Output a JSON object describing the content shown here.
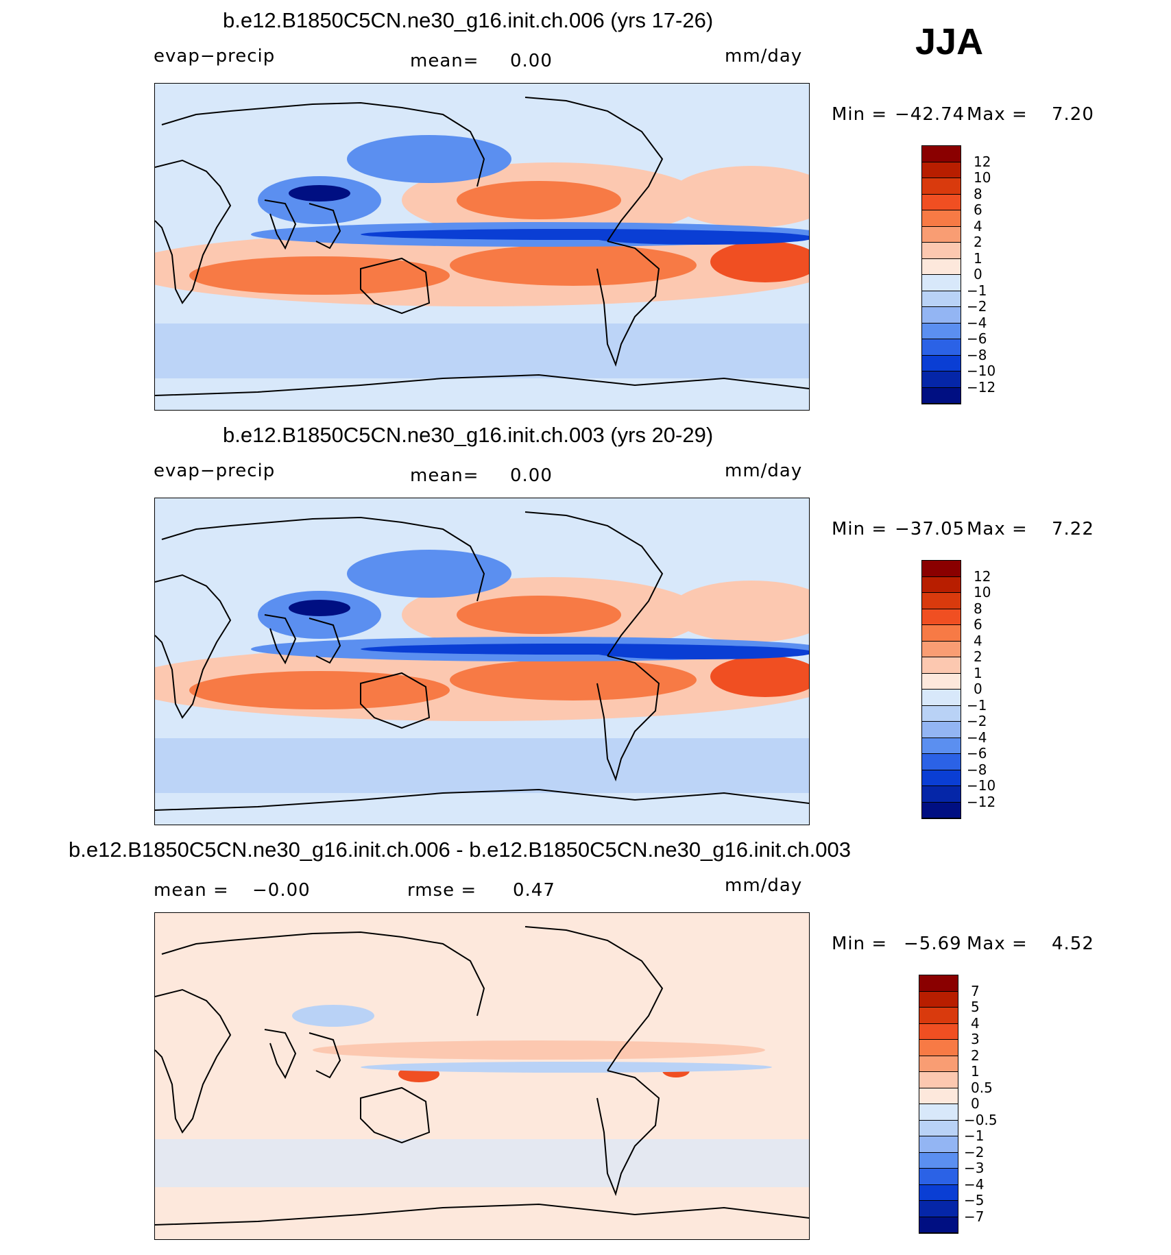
{
  "season": "JJA",
  "panels": [
    {
      "title": "b.e12.B1850C5CN.ne30_g16.init.ch.006 (yrs 17-26)",
      "left_label": "evap−precip",
      "center_label": "mean=",
      "center_value": "0.00",
      "units": "mm/day",
      "min_label": "Min  =",
      "min_value": "−42.74",
      "max_label": "Max  =",
      "max_value": "7.20",
      "colorbar_labels": [
        "12",
        "10",
        "8",
        "6",
        "4",
        "2",
        "1",
        "0",
        "−1",
        "−2",
        "−4",
        "−6",
        "−8",
        "−10",
        "−12"
      ]
    },
    {
      "title": "b.e12.B1850C5CN.ne30_g16.init.ch.003 (yrs 20-29)",
      "left_label": "evap−precip",
      "center_label": "mean=",
      "center_value": "0.00",
      "units": "mm/day",
      "min_label": "Min  =",
      "min_value": "−37.05",
      "max_label": "Max  =",
      "max_value": "7.22",
      "colorbar_labels": [
        "12",
        "10",
        "8",
        "6",
        "4",
        "2",
        "1",
        "0",
        "−1",
        "−2",
        "−4",
        "−6",
        "−8",
        "−10",
        "−12"
      ]
    },
    {
      "title": "b.e12.B1850C5CN.ne30_g16.init.ch.006 - b.e12.B1850C5CN.ne30_g16.init.ch.003",
      "left_label": "mean =",
      "left_value": "−0.00",
      "center_label": "rmse =",
      "center_value": "0.47",
      "units": "mm/day",
      "min_label": "Min  =",
      "min_value": "−5.69",
      "max_label": "Max  =",
      "max_value": "4.52",
      "colorbar_labels": [
        "7",
        "5",
        "4",
        "3",
        "2",
        "1",
        "0.5",
        "0",
        "−0.5",
        "−1",
        "−2",
        "−3",
        "−4",
        "−5",
        "−7"
      ]
    }
  ],
  "colorbar_colors": [
    "#8a0000",
    "#b81e00",
    "#d93a0d",
    "#f04f22",
    "#f77a45",
    "#f99d73",
    "#fcc8b0",
    "#fde8dc",
    "#d8e8fa",
    "#b9d2f6",
    "#93b5f3",
    "#5b8ff0",
    "#2b62e6",
    "#0a3ed4",
    "#0526a8",
    "#000f82"
  ],
  "map_colors": {
    "ocean_neutral": "#d8e8fa",
    "light_blue": "#b9d2f6",
    "mid_blue": "#5b8ff0",
    "deep_blue": "#0a3ed4",
    "darkest_blue": "#000f82",
    "light_red": "#fcc8b0",
    "mid_red": "#f77a45",
    "deep_red": "#f04f22",
    "pale": "#fde8dc",
    "coast": "#000000"
  }
}
